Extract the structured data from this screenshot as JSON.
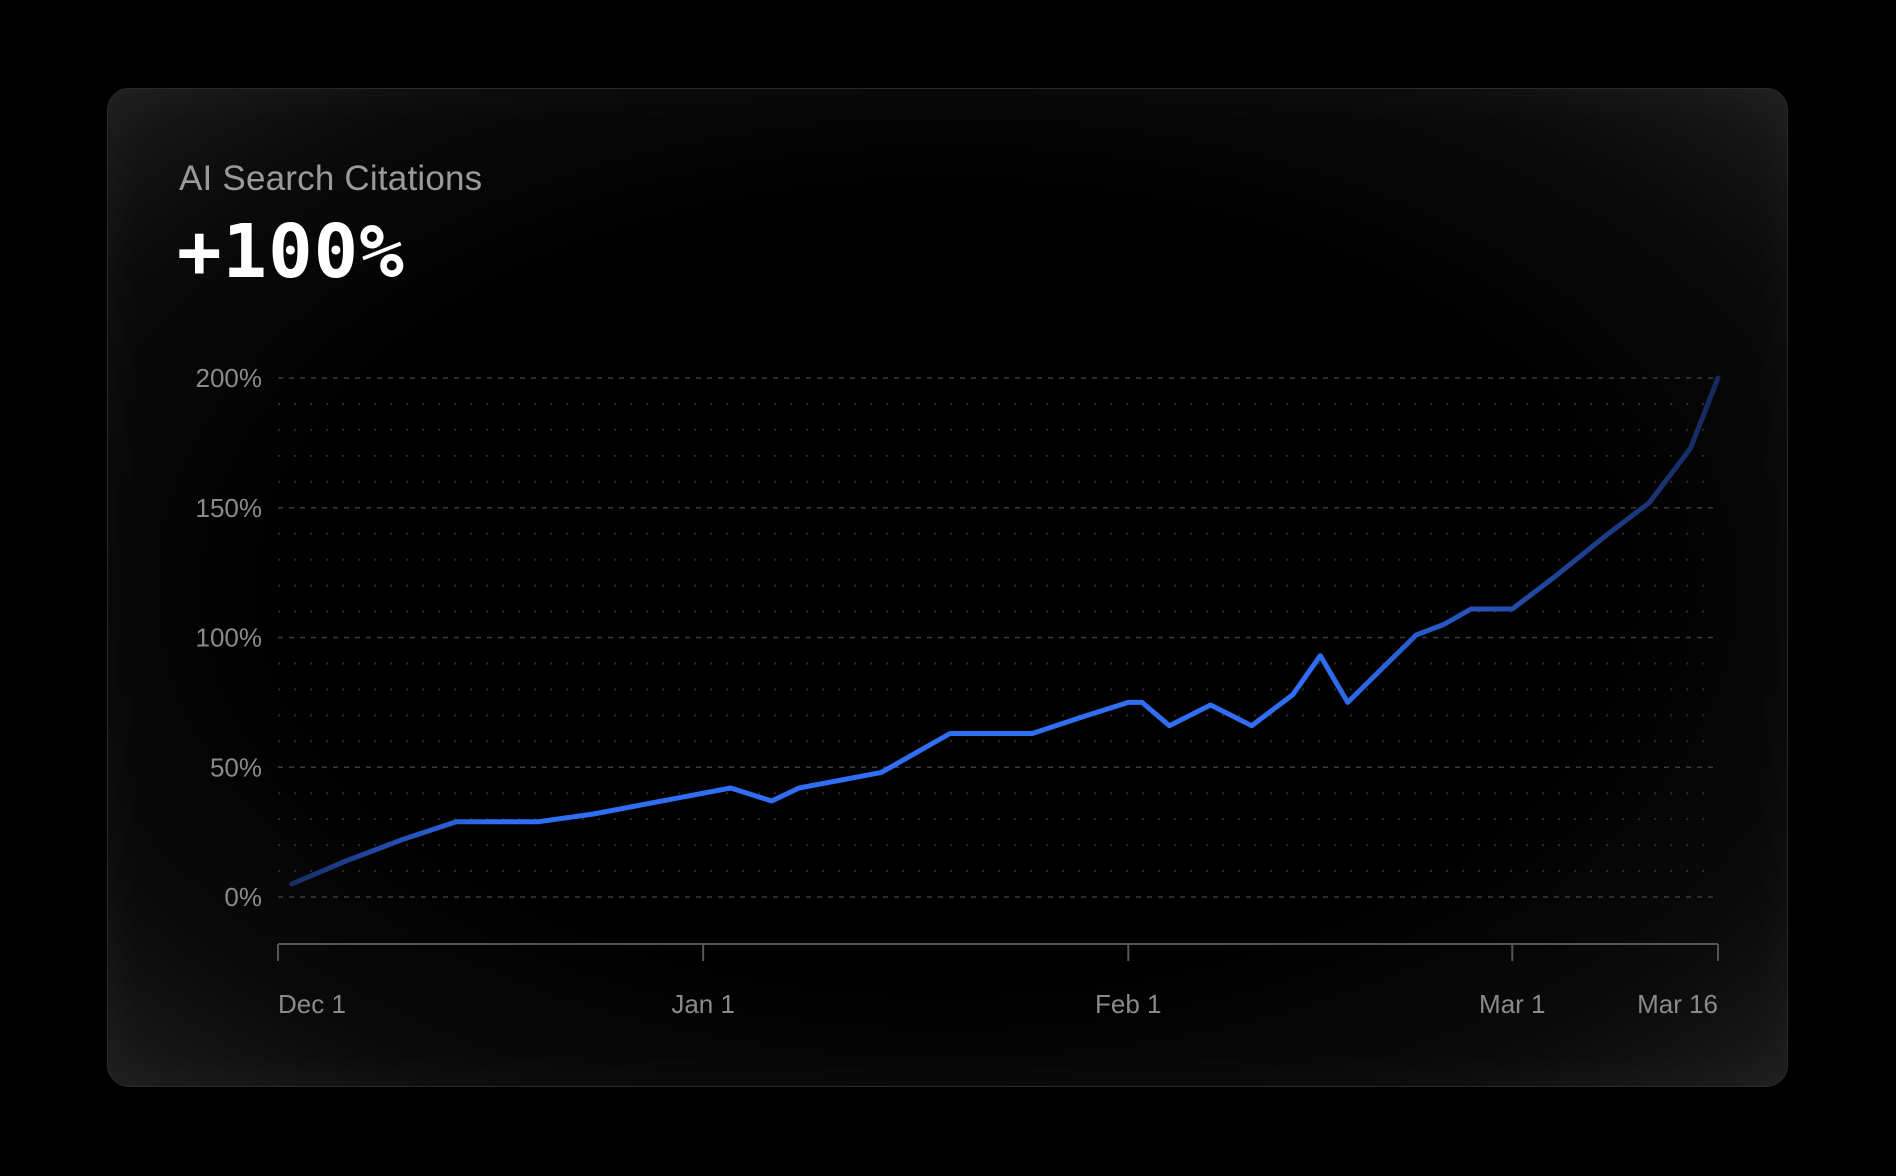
{
  "card": {
    "title": "AI Search Citations",
    "value": "+100%"
  },
  "colors": {
    "line": "#2f6ef5",
    "line_faded": "#16295c",
    "grid": "#3a3a3a",
    "axis": "#555555",
    "tick_text": "#8a8a8a"
  },
  "chart_data": {
    "type": "line",
    "title": "AI Search Citations",
    "xlabel": "",
    "ylabel": "",
    "y_unit": "%",
    "ylim": [
      0,
      200
    ],
    "y_ticks": [
      {
        "value": 0,
        "label": "0%"
      },
      {
        "value": 50,
        "label": "50%"
      },
      {
        "value": 100,
        "label": "100%"
      },
      {
        "value": 150,
        "label": "150%"
      },
      {
        "value": 200,
        "label": "200%"
      }
    ],
    "xlim": [
      "2024-12-01",
      "2025-03-16"
    ],
    "x_ticks": [
      {
        "date": "2024-12-01",
        "label": "Dec 1"
      },
      {
        "date": "2025-01-01",
        "label": "Jan 1"
      },
      {
        "date": "2025-02-01",
        "label": "Feb 1"
      },
      {
        "date": "2025-03-01",
        "label": "Mar 1"
      },
      {
        "date": "2025-03-16",
        "label": "Mar 16"
      }
    ],
    "grid": true,
    "series": [
      {
        "points": [
          {
            "x": "2024-12-02",
            "y": 5
          },
          {
            "x": "2024-12-06",
            "y": 14
          },
          {
            "x": "2024-12-10",
            "y": 22
          },
          {
            "x": "2024-12-14",
            "y": 29
          },
          {
            "x": "2024-12-18",
            "y": 29
          },
          {
            "x": "2024-12-20",
            "y": 29
          },
          {
            "x": "2024-12-24",
            "y": 32
          },
          {
            "x": "2024-12-28",
            "y": 36
          },
          {
            "x": "2024-12-31",
            "y": 39
          },
          {
            "x": "2025-01-03",
            "y": 42
          },
          {
            "x": "2025-01-06",
            "y": 37
          },
          {
            "x": "2025-01-08",
            "y": 42
          },
          {
            "x": "2025-01-14",
            "y": 48
          },
          {
            "x": "2025-01-19",
            "y": 63
          },
          {
            "x": "2025-01-25",
            "y": 63
          },
          {
            "x": "2025-01-29",
            "y": 70
          },
          {
            "x": "2025-02-01",
            "y": 75
          },
          {
            "x": "2025-02-02",
            "y": 75
          },
          {
            "x": "2025-02-04",
            "y": 66
          },
          {
            "x": "2025-02-07",
            "y": 74
          },
          {
            "x": "2025-02-10",
            "y": 66
          },
          {
            "x": "2025-02-13",
            "y": 78
          },
          {
            "x": "2025-02-15",
            "y": 93
          },
          {
            "x": "2025-02-17",
            "y": 75
          },
          {
            "x": "2025-02-22",
            "y": 101
          },
          {
            "x": "2025-02-24",
            "y": 105
          },
          {
            "x": "2025-02-26",
            "y": 111
          },
          {
            "x": "2025-03-01",
            "y": 111
          },
          {
            "x": "2025-03-04",
            "y": 123
          },
          {
            "x": "2025-03-08",
            "y": 140
          },
          {
            "x": "2025-03-11",
            "y": 152
          },
          {
            "x": "2025-03-14",
            "y": 173
          },
          {
            "x": "2025-03-16",
            "y": 200
          }
        ]
      }
    ]
  }
}
